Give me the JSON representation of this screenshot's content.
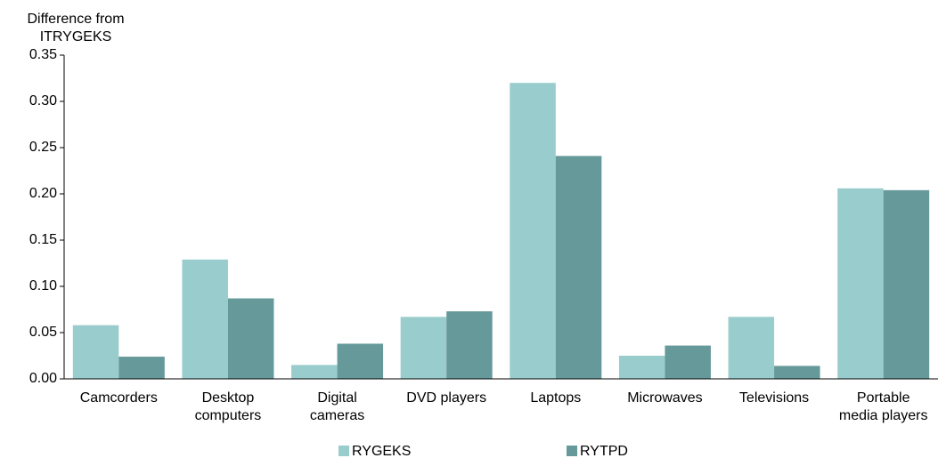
{
  "chart_data": {
    "type": "bar",
    "ylabel": "Difference from ITRYGEKS",
    "categories": [
      "Camcorders",
      "Desktop computers",
      "Digital cameras",
      "DVD players",
      "Laptops",
      "Microwaves",
      "Televisions",
      "Portable media players"
    ],
    "series": [
      {
        "name": "RYGEKS",
        "color": "#99cccc",
        "values": [
          0.058,
          0.129,
          0.015,
          0.067,
          0.32,
          0.025,
          0.067,
          0.206
        ]
      },
      {
        "name": "RYTPD",
        "color": "#669999",
        "values": [
          0.024,
          0.087,
          0.038,
          0.073,
          0.241,
          0.036,
          0.014,
          0.204
        ]
      }
    ],
    "ylim": [
      0,
      0.35
    ],
    "yticks": [
      {
        "value": 0,
        "label": "0.00"
      },
      0.05,
      {
        "value": 0.1,
        "label": "0.10"
      },
      0.15,
      {
        "value": 0.2,
        "label": "0.20"
      },
      0.25,
      {
        "value": 0.3,
        "label": "0.30"
      },
      0.35
    ],
    "grid": false,
    "legend": "bottom"
  }
}
